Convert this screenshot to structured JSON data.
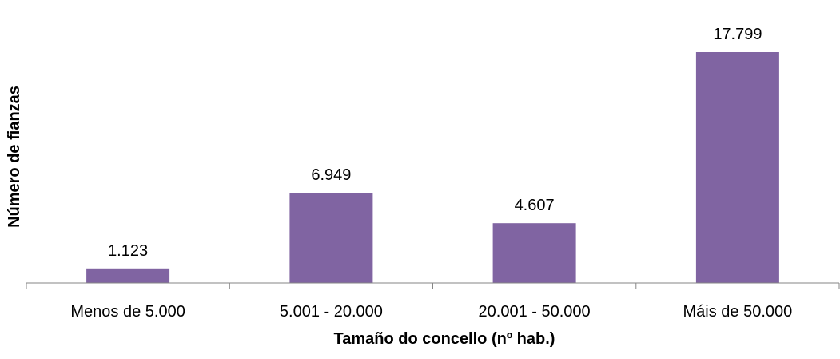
{
  "chart_data": {
    "type": "bar",
    "categories": [
      "Menos de 5.000",
      "5.001 - 20.000",
      "20.001 - 50.000",
      "Máis de 50.000"
    ],
    "values": [
      1123,
      6949,
      4607,
      17799
    ],
    "data_labels": [
      "1.123",
      "6.949",
      "4.607",
      "17.799"
    ],
    "xlabel": "Tamaño do concello (nº hab.)",
    "ylabel": "Número de fianzas",
    "ylim": [
      0,
      20000
    ],
    "grid": false,
    "legend": "none",
    "bar_color": "#8064A2",
    "axis_color": "#868686"
  }
}
